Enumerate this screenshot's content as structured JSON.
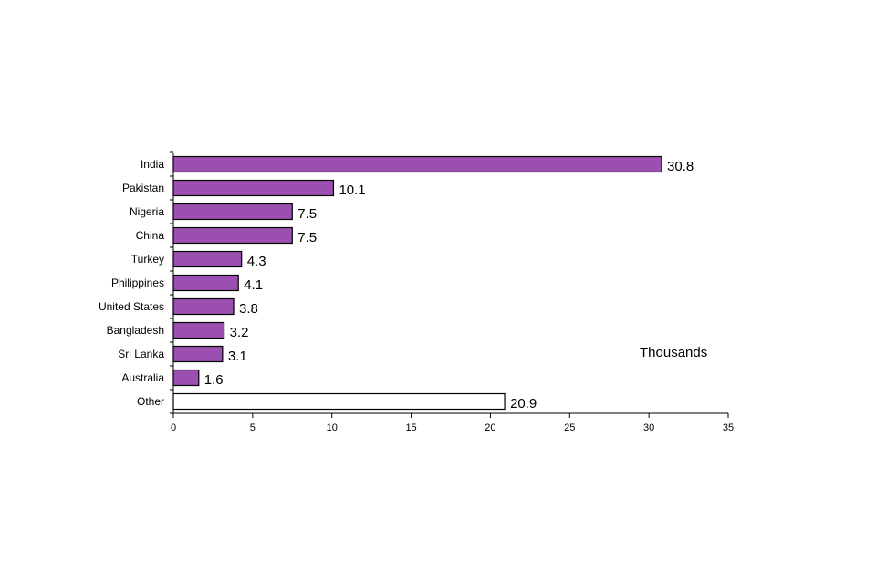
{
  "chart_data": {
    "type": "bar",
    "orientation": "horizontal",
    "categories": [
      "India",
      "Pakistan",
      "Nigeria",
      "China",
      "Turkey",
      "Philippines",
      "United States",
      "Bangladesh",
      "Sri Lanka",
      "Australia",
      "Other"
    ],
    "values": [
      30.8,
      10.1,
      7.5,
      7.5,
      4.3,
      4.1,
      3.8,
      3.2,
      3.1,
      1.6,
      20.9
    ],
    "value_labels": [
      "30.8",
      "10.1",
      "7.5",
      "7.5",
      "4.3",
      "4.1",
      "3.8",
      "3.2",
      "3.1",
      "1.6",
      "20.9"
    ],
    "bar_colors": [
      "#9b4fb0",
      "#9b4fb0",
      "#9b4fb0",
      "#9b4fb0",
      "#9b4fb0",
      "#9b4fb0",
      "#9b4fb0",
      "#9b4fb0",
      "#9b4fb0",
      "#9b4fb0",
      "#ffffff"
    ],
    "xlim": [
      0,
      35
    ],
    "xticks": [
      0,
      5,
      10,
      15,
      20,
      25,
      30,
      35
    ],
    "unit_label": "Thousands",
    "grid": false,
    "legend": "none"
  }
}
